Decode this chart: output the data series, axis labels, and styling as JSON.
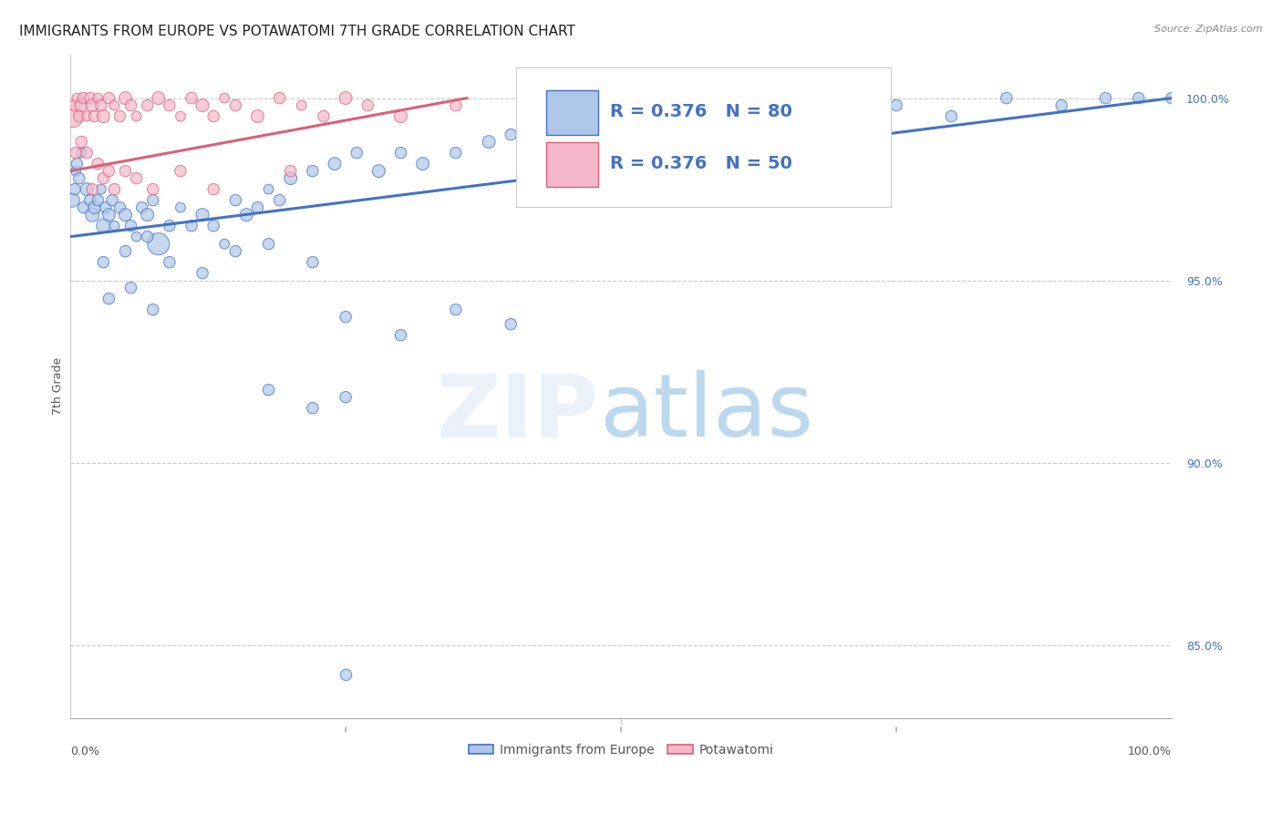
{
  "title": "IMMIGRANTS FROM EUROPE VS POTAWATOMI 7TH GRADE CORRELATION CHART",
  "source": "Source: ZipAtlas.com",
  "ylabel": "7th Grade",
  "legend_blue_r": "R = 0.376",
  "legend_blue_n": "N = 80",
  "legend_pink_r": "R = 0.376",
  "legend_pink_n": "N = 50",
  "blue_color": "#aec6e8",
  "blue_line_color": "#4472c4",
  "pink_color": "#f5b8cb",
  "pink_line_color": "#d9607a",
  "legend_text_color": "#4472c4",
  "blue_scatter_x": [
    0.2,
    0.4,
    0.5,
    0.6,
    0.8,
    1.0,
    1.2,
    1.5,
    1.8,
    2.0,
    2.2,
    2.5,
    2.8,
    3.0,
    3.2,
    3.5,
    3.8,
    4.0,
    4.5,
    5.0,
    5.5,
    6.0,
    6.5,
    7.0,
    7.5,
    8.0,
    9.0,
    10.0,
    11.0,
    12.0,
    13.0,
    14.0,
    15.0,
    16.0,
    17.0,
    18.0,
    19.0,
    20.0,
    22.0,
    24.0,
    26.0,
    28.0,
    30.0,
    32.0,
    35.0,
    38.0,
    40.0,
    42.0,
    45.0,
    47.0,
    50.0,
    55.0,
    60.0,
    65.0,
    70.0,
    75.0,
    80.0,
    85.0,
    90.0,
    94.0,
    97.0,
    100.0,
    3.0,
    5.0,
    7.0,
    9.0,
    12.0,
    15.0,
    18.0,
    22.0,
    3.5,
    5.5,
    7.5,
    25.0,
    30.0,
    35.0,
    40.0,
    18.0,
    22.0,
    25.0
  ],
  "blue_scatter_y": [
    97.2,
    97.5,
    98.0,
    98.2,
    97.8,
    98.5,
    97.0,
    97.5,
    97.2,
    96.8,
    97.0,
    97.2,
    97.5,
    96.5,
    97.0,
    96.8,
    97.2,
    96.5,
    97.0,
    96.8,
    96.5,
    96.2,
    97.0,
    96.8,
    97.2,
    96.0,
    96.5,
    97.0,
    96.5,
    96.8,
    96.5,
    96.0,
    97.2,
    96.8,
    97.0,
    97.5,
    97.2,
    97.8,
    98.0,
    98.2,
    98.5,
    98.0,
    98.5,
    98.2,
    98.5,
    98.8,
    99.0,
    99.2,
    99.0,
    99.2,
    99.5,
    99.2,
    99.5,
    99.0,
    99.5,
    99.8,
    99.5,
    100.0,
    99.8,
    100.0,
    100.0,
    100.0,
    95.5,
    95.8,
    96.2,
    95.5,
    95.2,
    95.8,
    96.0,
    95.5,
    94.5,
    94.8,
    94.2,
    94.0,
    93.5,
    94.2,
    93.8,
    92.0,
    91.5,
    91.8
  ],
  "blue_scatter_size": [
    120,
    80,
    60,
    80,
    80,
    60,
    80,
    100,
    80,
    120,
    100,
    80,
    60,
    120,
    80,
    100,
    80,
    60,
    80,
    100,
    80,
    60,
    80,
    100,
    80,
    300,
    80,
    60,
    80,
    100,
    80,
    60,
    80,
    100,
    80,
    60,
    80,
    100,
    80,
    100,
    80,
    100,
    80,
    100,
    80,
    100,
    80,
    100,
    80,
    100,
    80,
    80,
    80,
    80,
    80,
    80,
    80,
    80,
    80,
    80,
    80,
    80,
    80,
    80,
    80,
    80,
    80,
    80,
    80,
    80,
    80,
    80,
    80,
    80,
    80,
    80,
    80,
    80,
    80,
    80
  ],
  "pink_scatter_x": [
    0.2,
    0.4,
    0.6,
    0.8,
    1.0,
    1.2,
    1.5,
    1.8,
    2.0,
    2.2,
    2.5,
    2.8,
    3.0,
    3.5,
    4.0,
    4.5,
    5.0,
    5.5,
    6.0,
    7.0,
    8.0,
    9.0,
    10.0,
    11.0,
    12.0,
    13.0,
    14.0,
    15.0,
    17.0,
    19.0,
    21.0,
    23.0,
    25.0,
    27.0,
    30.0,
    35.0,
    0.5,
    1.0,
    1.5,
    2.0,
    2.5,
    3.0,
    3.5,
    4.0,
    5.0,
    6.0,
    7.5,
    10.0,
    13.0,
    20.0
  ],
  "pink_scatter_y": [
    99.5,
    99.8,
    100.0,
    99.5,
    99.8,
    100.0,
    99.5,
    100.0,
    99.8,
    99.5,
    100.0,
    99.8,
    99.5,
    100.0,
    99.8,
    99.5,
    100.0,
    99.8,
    99.5,
    99.8,
    100.0,
    99.8,
    99.5,
    100.0,
    99.8,
    99.5,
    100.0,
    99.8,
    99.5,
    100.0,
    99.8,
    99.5,
    100.0,
    99.8,
    99.5,
    99.8,
    98.5,
    98.8,
    98.5,
    97.5,
    98.2,
    97.8,
    98.0,
    97.5,
    98.0,
    97.8,
    97.5,
    98.0,
    97.5,
    98.0
  ],
  "pink_scatter_size": [
    300,
    80,
    60,
    80,
    100,
    80,
    60,
    80,
    100,
    80,
    60,
    80,
    100,
    80,
    60,
    80,
    100,
    80,
    60,
    80,
    100,
    80,
    60,
    80,
    100,
    80,
    60,
    80,
    100,
    80,
    60,
    80,
    100,
    80,
    100,
    80,
    80,
    80,
    80,
    80,
    80,
    80,
    80,
    80,
    80,
    80,
    80,
    80,
    80,
    80
  ],
  "blue_trend_x": [
    0,
    100
  ],
  "blue_trend_y": [
    96.2,
    100.0
  ],
  "pink_trend_x": [
    0,
    36
  ],
  "pink_trend_y": [
    98.0,
    100.0
  ],
  "xlim": [
    0,
    100
  ],
  "ylim": [
    83.0,
    101.2
  ],
  "yticks": [
    85.0,
    90.0,
    95.0,
    100.0
  ],
  "ytick_labels": [
    "85.0%",
    "90.0%",
    "95.0%",
    "100.0%"
  ],
  "background_color": "#ffffff",
  "grid_color": "#cccccc",
  "title_fontsize": 11,
  "axis_label_fontsize": 9,
  "tick_fontsize": 9,
  "legend_fontsize": 13,
  "blue_one_outlier_x": 25.0,
  "blue_one_outlier_y": 84.2
}
